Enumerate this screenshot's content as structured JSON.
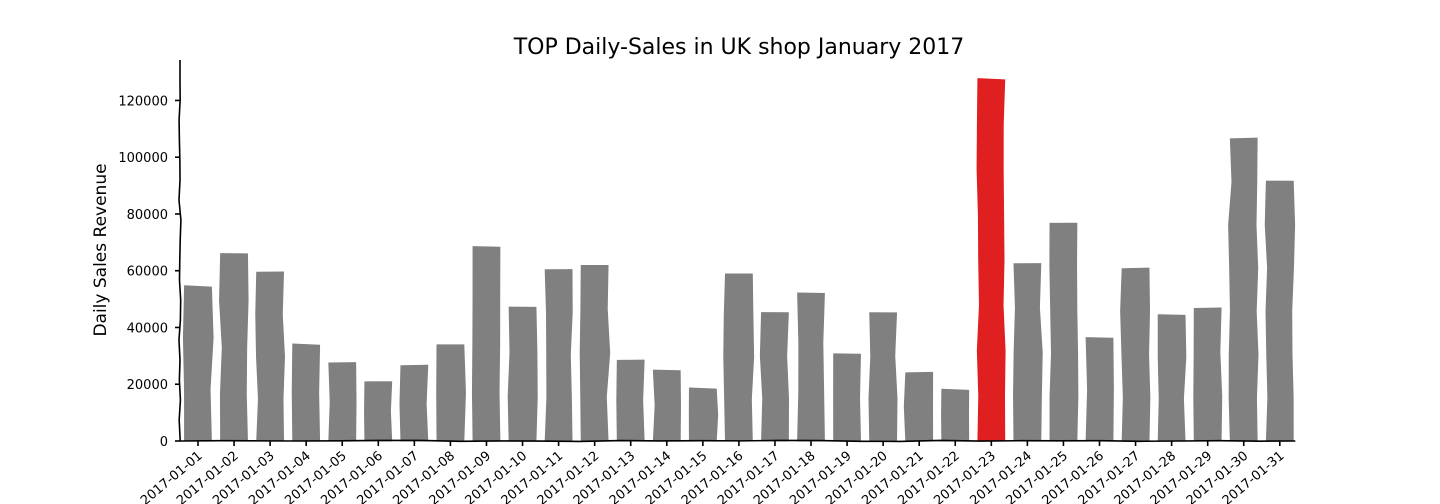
{
  "colors": {
    "bar": "#808080",
    "highlight": "#e02020",
    "axis": "#000000"
  },
  "chart_data": {
    "type": "bar",
    "title": "TOP Daily-Sales in UK shop January 2017",
    "xlabel": "",
    "ylabel": "Daily Sales Revenue",
    "ylim": [
      0,
      135000
    ],
    "yticks": [
      0,
      20000,
      40000,
      60000,
      80000,
      100000,
      120000
    ],
    "highlight_index": 22,
    "legend": "none",
    "grid": false,
    "categories": [
      "2017-01-01",
      "2017-01-02",
      "2017-01-03",
      "2017-01-04",
      "2017-01-05",
      "2017-01-06",
      "2017-01-07",
      "2017-01-08",
      "2017-01-09",
      "2017-01-10",
      "2017-01-11",
      "2017-01-12",
      "2017-01-13",
      "2017-01-14",
      "2017-01-15",
      "2017-01-16",
      "2017-01-17",
      "2017-01-18",
      "2017-01-19",
      "2017-01-20",
      "2017-01-21",
      "2017-01-22",
      "2017-01-23",
      "2017-01-24",
      "2017-01-25",
      "2017-01-26",
      "2017-01-27",
      "2017-01-28",
      "2017-01-29",
      "2017-01-30",
      "2017-01-31"
    ],
    "values": [
      54500,
      66000,
      59500,
      34000,
      27500,
      21000,
      26500,
      34000,
      68500,
      47000,
      60500,
      62000,
      28500,
      25000,
      18500,
      59000,
      45000,
      52000,
      30500,
      45000,
      24000,
      18000,
      127500,
      62500,
      77000,
      36500,
      61000,
      44500,
      47000,
      106500,
      91500
    ]
  }
}
